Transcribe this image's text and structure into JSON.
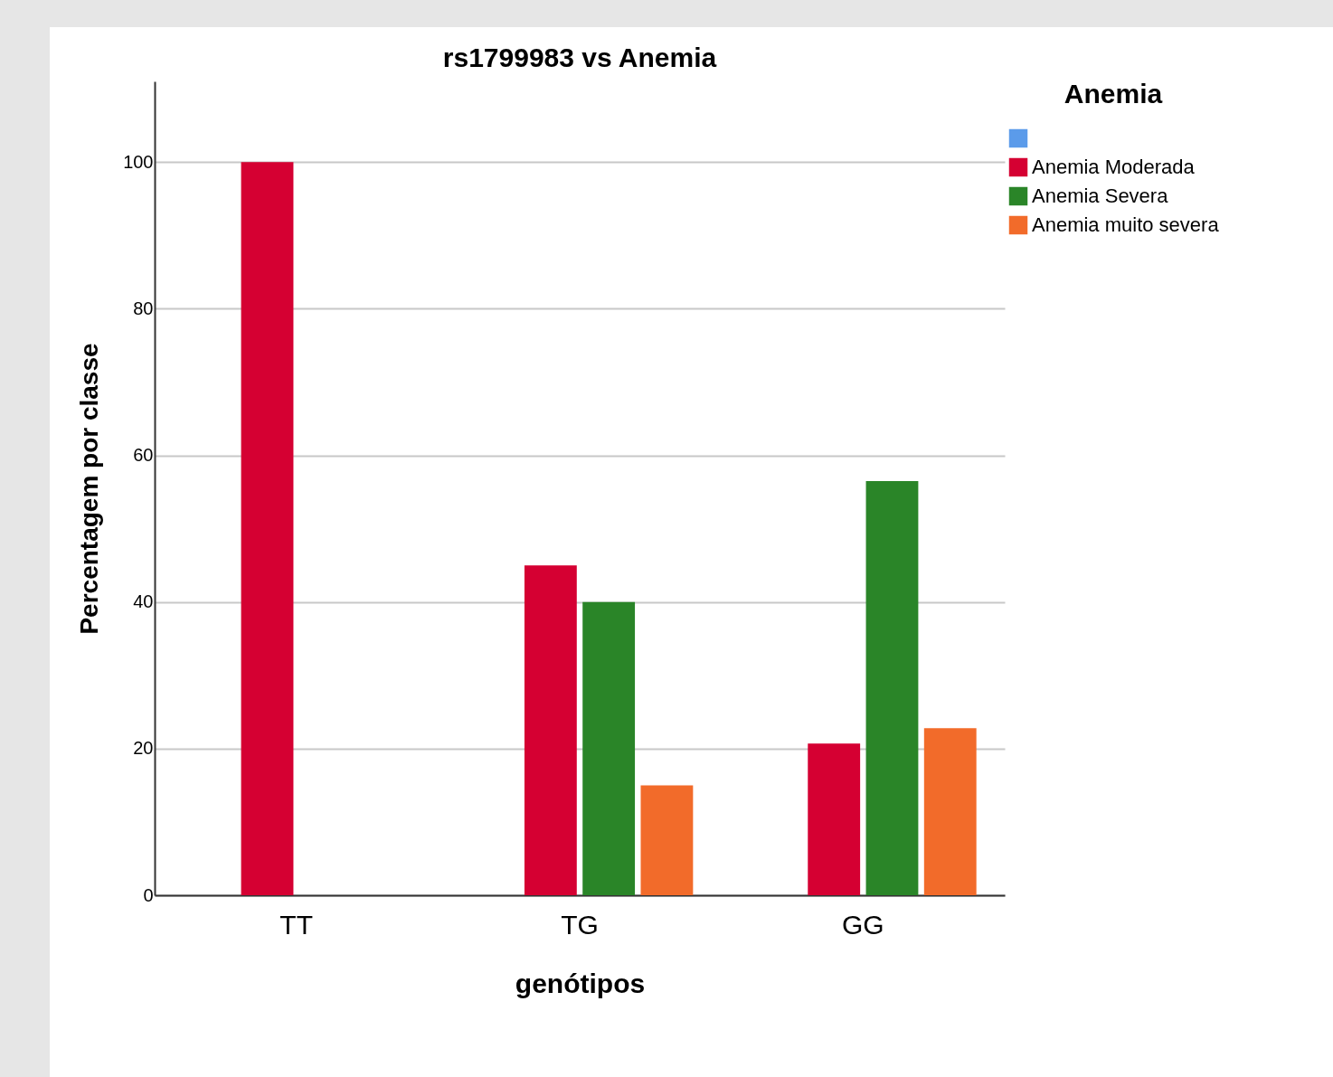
{
  "chart_data": {
    "type": "bar",
    "title": "rs1799983 vs Anemia",
    "xlabel": "genótipos",
    "ylabel": "Percentagem por classe",
    "legend_title": "Anemia",
    "categories": [
      "TT",
      "TG",
      "GG"
    ],
    "series": [
      {
        "color": "#5b9bea",
        "values": [
          null,
          null,
          null
        ]
      },
      {
        "name": "Anemia Moderada",
        "color": "#d50032",
        "values": [
          100,
          45,
          20.7
        ]
      },
      {
        "name": "Anemia Severa",
        "color": "#2a8528",
        "values": [
          null,
          40,
          56.5
        ]
      },
      {
        "name": "Anemia muito severa",
        "color": "#f26b2a",
        "values": [
          null,
          15,
          22.8
        ]
      }
    ],
    "ylim": [
      0,
      111
    ],
    "yticks": [
      0,
      20,
      40,
      60,
      80,
      100
    ],
    "grid": "y",
    "legend": "top right"
  }
}
